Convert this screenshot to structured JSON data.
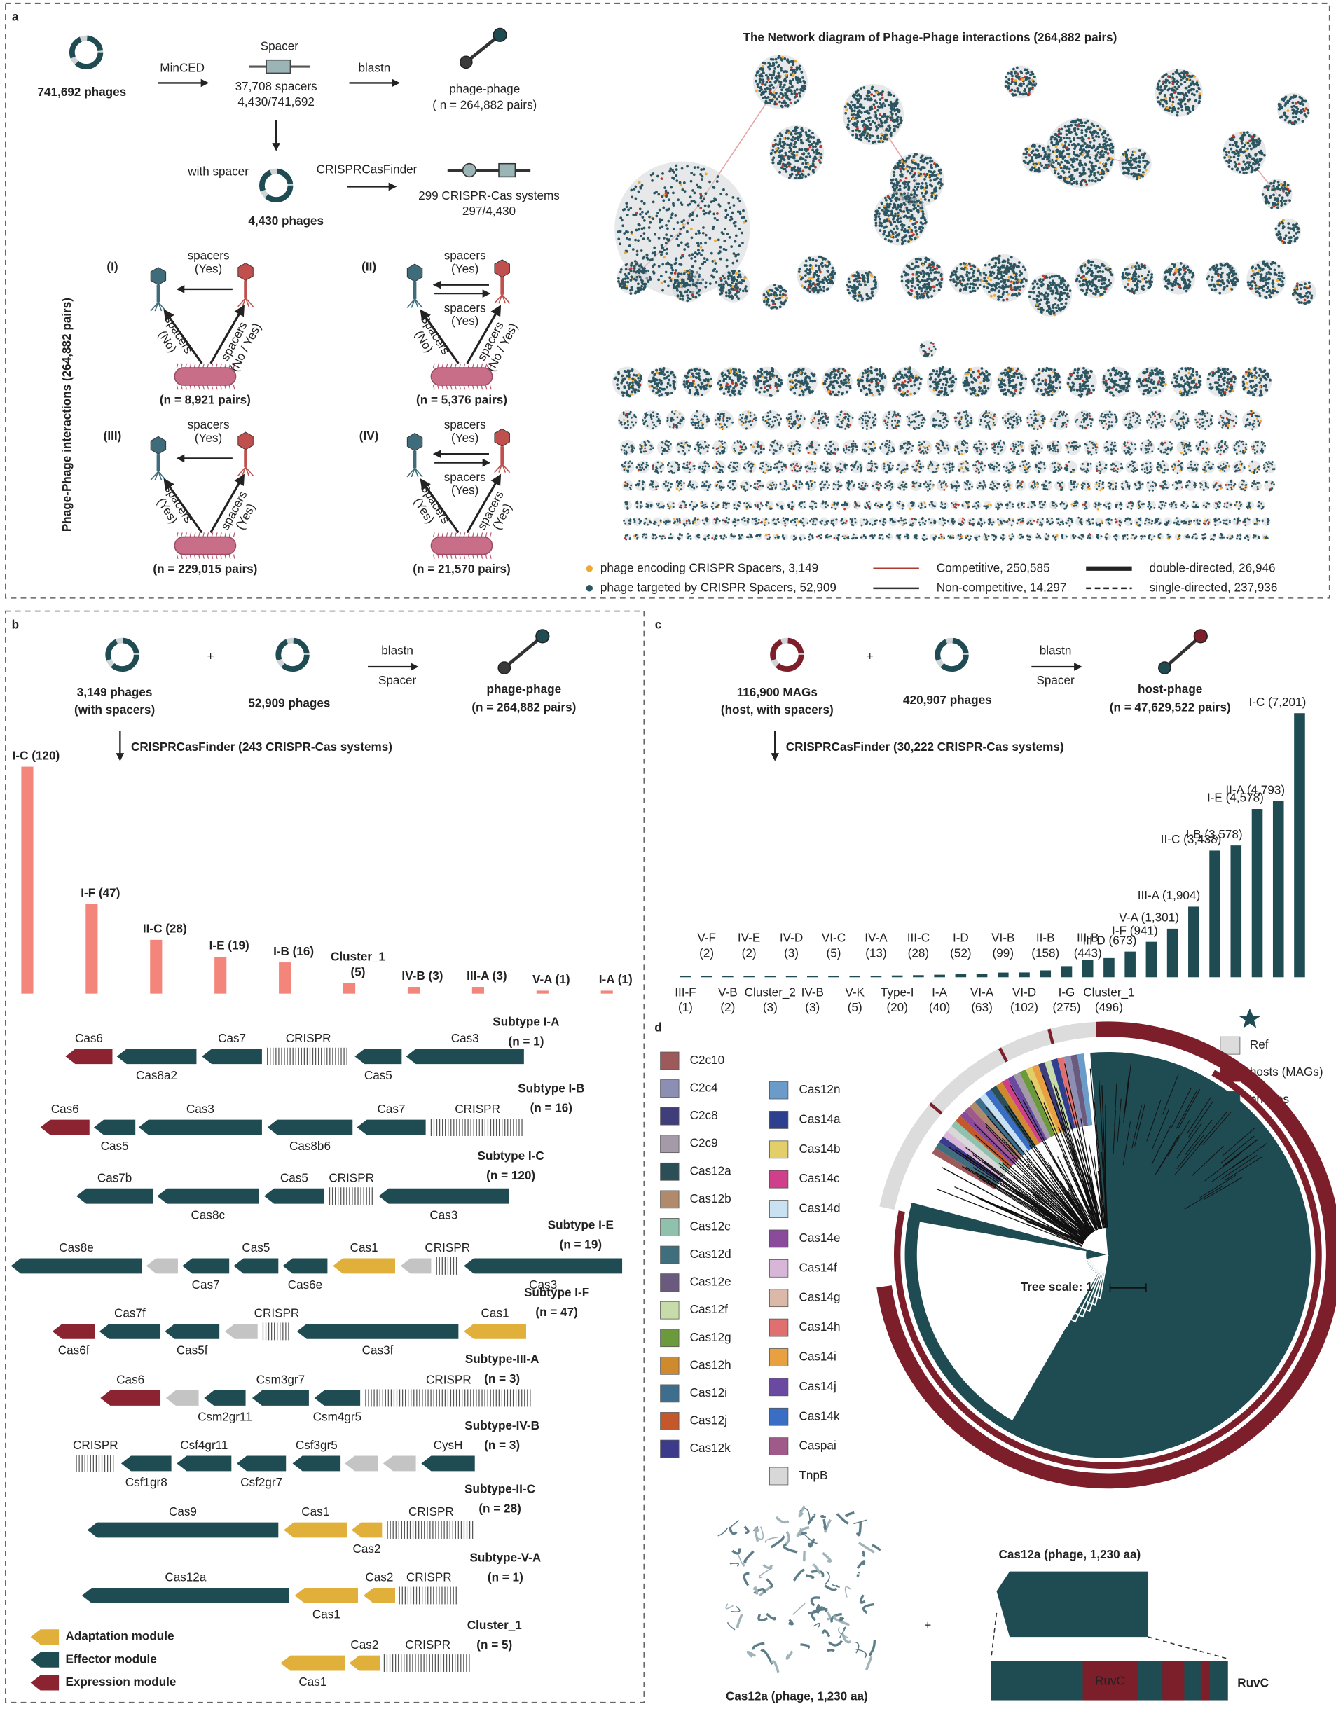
{
  "panel_a": {
    "letter": "a",
    "phages": "741,692 phages",
    "mincED": "MinCED",
    "spacer": "Spacer",
    "spacers": "37,708 spacers",
    "spacer_ratio": "4,430/741,692",
    "blastn": "blastn",
    "pp": "phage-phage",
    "pp_n": "( n = 264,882 pairs)",
    "with_spacer": "with spacer",
    "phages_with": "4,430 phages",
    "finder": "CRISPRCasFinder",
    "systems": "299 CRISPR-Cas systems",
    "systems_ratio": "297/4,430",
    "y_label": "Phage-Phage interactions (264,882 pairs)",
    "cases": [
      {
        "label": "(I)",
        "arrows": [
          [
            "spacers",
            "(Yes)"
          ]
        ],
        "left": [
          "spacers",
          "(No)"
        ],
        "right": [
          "spacers",
          "(No / Yes)"
        ],
        "n": "(n = 8,921 pairs)"
      },
      {
        "label": "(II)",
        "arrows": [
          [
            "spacers",
            "(Yes)"
          ],
          [
            "spacers",
            "(Yes)"
          ]
        ],
        "left": [
          "Spacers",
          "(No)"
        ],
        "right": [
          "spacers",
          "(No / Yes)"
        ],
        "n": "(n = 5,376 pairs)"
      },
      {
        "label": "(III)",
        "arrows": [
          [
            "spacers",
            "(Yes)"
          ]
        ],
        "left": [
          "spacers",
          "(Yes)"
        ],
        "right": [
          "spacers",
          "(Yes)"
        ],
        "n": "(n = 229,015 pairs)"
      },
      {
        "label": "(IV)",
        "arrows": [
          [
            "spacers",
            "(Yes)"
          ],
          [
            "spacers",
            "(Yes)"
          ]
        ],
        "left": [
          "Spacers",
          "(Yes)"
        ],
        "right": [
          "spacers",
          "(Yes)"
        ],
        "n": "(n = 21,570 pairs)"
      }
    ],
    "network": {
      "title": "The Network diagram of Phage-Phage interactions (264,882 pairs)",
      "legend": [
        {
          "label": "phage encoding CRISPR Spacers, 3,149",
          "mark": "dot",
          "color": "#f0a830"
        },
        {
          "label": "phage targeted by CRISPR Spacers, 52,909",
          "mark": "dot",
          "color": "#2b5560"
        },
        {
          "label": "Competitive, 250,585",
          "mark": "line",
          "color": "#b03a2e"
        },
        {
          "label": "Non-competitive, 14,297",
          "mark": "line",
          "color": "#333333"
        },
        {
          "label": "double-directed, 26,946",
          "mark": "thick",
          "color": "#222222"
        },
        {
          "label": "single-directed, 237,936",
          "mark": "dashed",
          "color": "#222222"
        }
      ]
    }
  },
  "panel_b": {
    "letter": "b",
    "left_phages": [
      "3,149 phages",
      "(with spacers)"
    ],
    "plus": "+",
    "right_phages": "52,909 phages",
    "blastn": "blastn",
    "spacer": "Spacer",
    "pp": "phage-phage",
    "pp_n": "(n = 264,882 pairs)",
    "finder": "CRISPRCasFinder (243 CRISPR-Cas systems)",
    "bars": {
      "color": "#f4857a",
      "labels": [
        [
          "I-C (120)"
        ],
        [
          "I-F (47)"
        ],
        [
          "II-C (28)"
        ],
        [
          "I-E (19)"
        ],
        [
          "I-B (16)"
        ],
        [
          "Cluster_1",
          "(5)"
        ],
        [
          "IV-B (3)"
        ],
        [
          "III-A (3)"
        ],
        [
          "V-A (1)"
        ],
        [
          "I-A (1)"
        ]
      ],
      "values": [
        120,
        47,
        28,
        19,
        16,
        5,
        3,
        3,
        1,
        1
      ],
      "label_colors": [
        "#222222",
        "#222222",
        "#d62d20",
        "#222222",
        "#222222",
        "#222222",
        "#222222",
        "#222222",
        "#d62d20",
        "#222222"
      ]
    },
    "operons": [
      {
        "title": "Subtype I-A",
        "n": "(n = 1)",
        "color": "#2c4f5a",
        "genes": [
          {
            "label": "Cas6",
            "module": "expression"
          },
          {
            "label": "Cas8a2",
            "module": "effector"
          },
          {
            "label": "Cas7",
            "module": "effector"
          },
          {
            "label": "CRISPR",
            "module": "crispr"
          },
          {
            "label": "Cas5",
            "module": "effector"
          },
          {
            "label": "Cas3",
            "module": "effector"
          }
        ]
      },
      {
        "title": "Subtype I-B",
        "n": "(n = 16)",
        "color": "#2c4f5a",
        "genes": [
          {
            "label": "Cas6",
            "module": "expression"
          },
          {
            "label": "Cas5",
            "module": "effector"
          },
          {
            "label": "Cas3",
            "module": "effector"
          },
          {
            "label": "Cas8b6",
            "module": "effector"
          },
          {
            "label": "Cas7",
            "module": "effector"
          },
          {
            "label": "CRISPR",
            "module": "crispr"
          }
        ]
      },
      {
        "title": "Subtype I-C",
        "n": "(n = 120)",
        "color": "#2c4f5a",
        "genes": [
          {
            "label": "Cas7b",
            "module": "effector"
          },
          {
            "label": "Cas8c",
            "module": "effector"
          },
          {
            "label": "Cas5",
            "module": "effector"
          },
          {
            "label": "CRISPR",
            "module": "crispr"
          },
          {
            "label": "Cas3",
            "module": "effector"
          }
        ]
      },
      {
        "title": "Subtype I-E",
        "n": "(n = 19)",
        "color": "#2c4f5a",
        "genes": [
          {
            "label": "Cas8e",
            "module": "effector"
          },
          {
            "module": "other"
          },
          {
            "label": "Cas7",
            "module": "effector"
          },
          {
            "label": "Cas5",
            "module": "effector"
          },
          {
            "label": "Cas6e",
            "module": "effector"
          },
          {
            "label": "Cas1",
            "module": "adaptation"
          },
          {
            "module": "other"
          },
          {
            "label": "CRISPR",
            "module": "crispr"
          },
          {
            "label": "Cas3",
            "module": "effector"
          }
        ]
      },
      {
        "title": "Subtype I-F",
        "n": "(n = 47)",
        "color": "#2c4f5a",
        "genes": [
          {
            "label": "Cas6f",
            "module": "expression"
          },
          {
            "label": "Cas7f",
            "module": "effector"
          },
          {
            "label": "Cas5f",
            "module": "effector"
          },
          {
            "module": "other"
          },
          {
            "label": "CRISPR",
            "module": "crispr"
          },
          {
            "label": "Cas3f",
            "module": "effector"
          },
          {
            "label": "Cas1",
            "module": "adaptation"
          }
        ]
      },
      {
        "title": "Subtype-III-A",
        "n": "(n = 3)",
        "color": "#2c4f5a",
        "genes": [
          {
            "label": "Cas6",
            "module": "expression"
          },
          {
            "module": "other"
          },
          {
            "label": "Csm2gr11",
            "module": "effector"
          },
          {
            "label": "Csm3gr7",
            "module": "effector"
          },
          {
            "label": "Csm4gr5",
            "module": "effector"
          },
          {
            "label": "CRISPR",
            "module": "crispr"
          }
        ]
      },
      {
        "title": "Subtype-IV-B",
        "n": "(n = 3)",
        "color": "#2c4f5a",
        "genes": [
          {
            "label": "CRISPR",
            "module": "crispr"
          },
          {
            "label": "Csf1gr8",
            "module": "effector"
          },
          {
            "label": "Csf4gr11",
            "module": "effector"
          },
          {
            "label": "Csf2gr7",
            "module": "effector"
          },
          {
            "label": "Csf3gr5",
            "module": "effector"
          },
          {
            "module": "other"
          },
          {
            "module": "other"
          },
          {
            "label": "CysH",
            "module": "effector"
          }
        ]
      },
      {
        "title": "Subtype-II-C",
        "n": "(n = 28)",
        "color": "#d62d20",
        "genes": [
          {
            "label": "Cas9",
            "module": "effector"
          },
          {
            "label": "Cas1",
            "module": "adaptation"
          },
          {
            "label": "Cas2",
            "module": "adaptation"
          },
          {
            "label": "CRISPR",
            "module": "crispr"
          }
        ]
      },
      {
        "title": "Subtype-V-A",
        "n": "(n = 1)",
        "color": "#d62d20",
        "genes": [
          {
            "label": "Cas12a",
            "module": "effector"
          },
          {
            "label": "Cas1",
            "module": "adaptation"
          },
          {
            "label": "Cas2",
            "module": "adaptation"
          },
          {
            "label": "CRISPR",
            "module": "crispr"
          }
        ]
      },
      {
        "title": "Cluster_1",
        "n": "(n = 5)",
        "color": "#2c4f5a",
        "genes": [
          {
            "label": "Cas1",
            "module": "adaptation"
          },
          {
            "label": "Cas2",
            "module": "adaptation"
          },
          {
            "label": "CRISPR",
            "module": "crispr"
          }
        ]
      }
    ],
    "module_colors": {
      "adaptation": "#e1b03a",
      "effector": "#1f4b52",
      "expression": "#8b2430",
      "other": "#c4c4c4",
      "crispr": "#555555"
    },
    "module_legend": [
      {
        "label": "Adaptation module",
        "color": "#e1b03a"
      },
      {
        "label": "Effector module",
        "color": "#1f4b52"
      },
      {
        "label": "Expression module",
        "color": "#8b2430"
      }
    ]
  },
  "panel_c": {
    "letter": "c",
    "left": [
      "116,900 MAGs",
      "(host, with spacers)"
    ],
    "plus": "+",
    "right": "420,907 phages",
    "blastn": "blastn",
    "spacer": "Spacer",
    "hp": "host-phage",
    "hp_n": "(n = 47,629,522 pairs)",
    "finder": "CRISPRCasFinder (30,222 CRISPR-Cas systems)",
    "bars": {
      "color": "#1f4b52",
      "labels": [
        [
          "III-F",
          "(1)"
        ],
        [
          "V-F",
          "(2)"
        ],
        [
          "V-B",
          "(2)"
        ],
        [
          "IV-E",
          "(2)"
        ],
        [
          "Cluster_2",
          "(3)"
        ],
        [
          "IV-D",
          "(3)"
        ],
        [
          "IV-B",
          "(3)"
        ],
        [
          "VI-C",
          "(5)"
        ],
        [
          "V-K",
          "(5)"
        ],
        [
          "IV-A",
          "(13)"
        ],
        [
          "Type-I",
          "(20)"
        ],
        [
          "III-C",
          "(28)"
        ],
        [
          "I-A",
          "(40)"
        ],
        [
          "I-D",
          "(52)"
        ],
        [
          "VI-A",
          "(63)"
        ],
        [
          "VI-B",
          "(99)"
        ],
        [
          "VI-D",
          "(102)"
        ],
        [
          "II-B",
          "(158)"
        ],
        [
          "I-G",
          "(275)"
        ],
        [
          "III-B",
          "(443)"
        ],
        [
          "Cluster_1",
          "(496)"
        ],
        [
          "III-D (673)"
        ],
        [
          "I-F (941)"
        ],
        [
          "V-A (1,301)"
        ],
        [
          "III-A (1,904)"
        ],
        [
          "II-C (3,438)"
        ],
        [
          "I-B (3,578)"
        ],
        [
          "I-E (4,578)"
        ],
        [
          "II-A (4,793)"
        ],
        [
          "I-C (7,201)"
        ]
      ],
      "values": [
        1,
        2,
        2,
        2,
        3,
        3,
        3,
        5,
        5,
        13,
        20,
        28,
        40,
        52,
        63,
        99,
        102,
        158,
        275,
        443,
        496,
        673,
        941,
        1301,
        1904,
        3438,
        3578,
        4578,
        4793,
        7201
      ],
      "label_colors": [
        "#222222",
        "#d62d20",
        "#d62d20",
        "#222222",
        "#222222",
        "#222222",
        "#222222",
        "#222222",
        "#d62d20",
        "#222222",
        "#222222",
        "#222222",
        "#222222",
        "#222222",
        "#222222",
        "#222222",
        "#222222",
        "#d62d20",
        "#222222",
        "#222222",
        "#222222",
        "#222222",
        "#222222",
        "#d62d20",
        "#222222",
        "#d62d20",
        "#222222",
        "#222222",
        "#d62d20",
        "#222222"
      ]
    }
  },
  "panel_d": {
    "letter": "d",
    "legend": [
      {
        "label": "C2c10",
        "color": "#9e5a5a"
      },
      {
        "label": "C2c4",
        "color": "#8c8fb3"
      },
      {
        "label": "C2c8",
        "color": "#3f3d7a"
      },
      {
        "label": "C2c9",
        "color": "#a59aa8"
      },
      {
        "label": "Cas12a",
        "color": "#2b4f57"
      },
      {
        "label": "Cas12b",
        "color": "#b08a6a"
      },
      {
        "label": "Cas12c",
        "color": "#8fc1ad"
      },
      {
        "label": "Cas12d",
        "color": "#3f6f7c"
      },
      {
        "label": "Cas12e",
        "color": "#6a5a7e"
      },
      {
        "label": "Cas12f",
        "color": "#c7dca8"
      },
      {
        "label": "Cas12g",
        "color": "#6a9a3c"
      },
      {
        "label": "Cas12h",
        "color": "#d08a2e"
      },
      {
        "label": "Cas12i",
        "color": "#3e6e8e"
      },
      {
        "label": "Cas12j",
        "color": "#c4582a"
      },
      {
        "label": "Cas12k",
        "color": "#3c3a8a"
      },
      {
        "label": "Cas12n",
        "color": "#6b9bc9"
      },
      {
        "label": "Cas14a",
        "color": "#2f3f8f"
      },
      {
        "label": "Cas14b",
        "color": "#e2cf6a"
      },
      {
        "label": "Cas14c",
        "color": "#d0408a"
      },
      {
        "label": "Cas14d",
        "color": "#c9e2f2"
      },
      {
        "label": "Cas14e",
        "color": "#8a4c9a"
      },
      {
        "label": "Cas14f",
        "color": "#d8b6d8"
      },
      {
        "label": "Cas14g",
        "color": "#dcb8a8"
      },
      {
        "label": "Cas14h",
        "color": "#e07070"
      },
      {
        "label": "Cas14i",
        "color": "#e8a040"
      },
      {
        "label": "Cas14j",
        "color": "#6a4aa0"
      },
      {
        "label": "Cas14k",
        "color": "#3a6ec4"
      },
      {
        "label": "Caspai",
        "color": "#a05a8a"
      },
      {
        "label": "TnpB",
        "color": "#d8d8d8"
      }
    ],
    "rings": [
      {
        "label": "Ref",
        "color": "#dcdcdc"
      },
      {
        "label": "hosts (MAGs)",
        "color": "#7d1f2a"
      },
      {
        "label": "phages",
        "color": "#1f4b52"
      }
    ],
    "tree_scale": "Tree scale: 1",
    "protein_label": "Cas12a (phage, 1,230 aa)",
    "domain_label": "Cas12a (phage, 1,230 aa)",
    "ruvc_inner": "RuvC",
    "ruvc": "RuvC"
  }
}
